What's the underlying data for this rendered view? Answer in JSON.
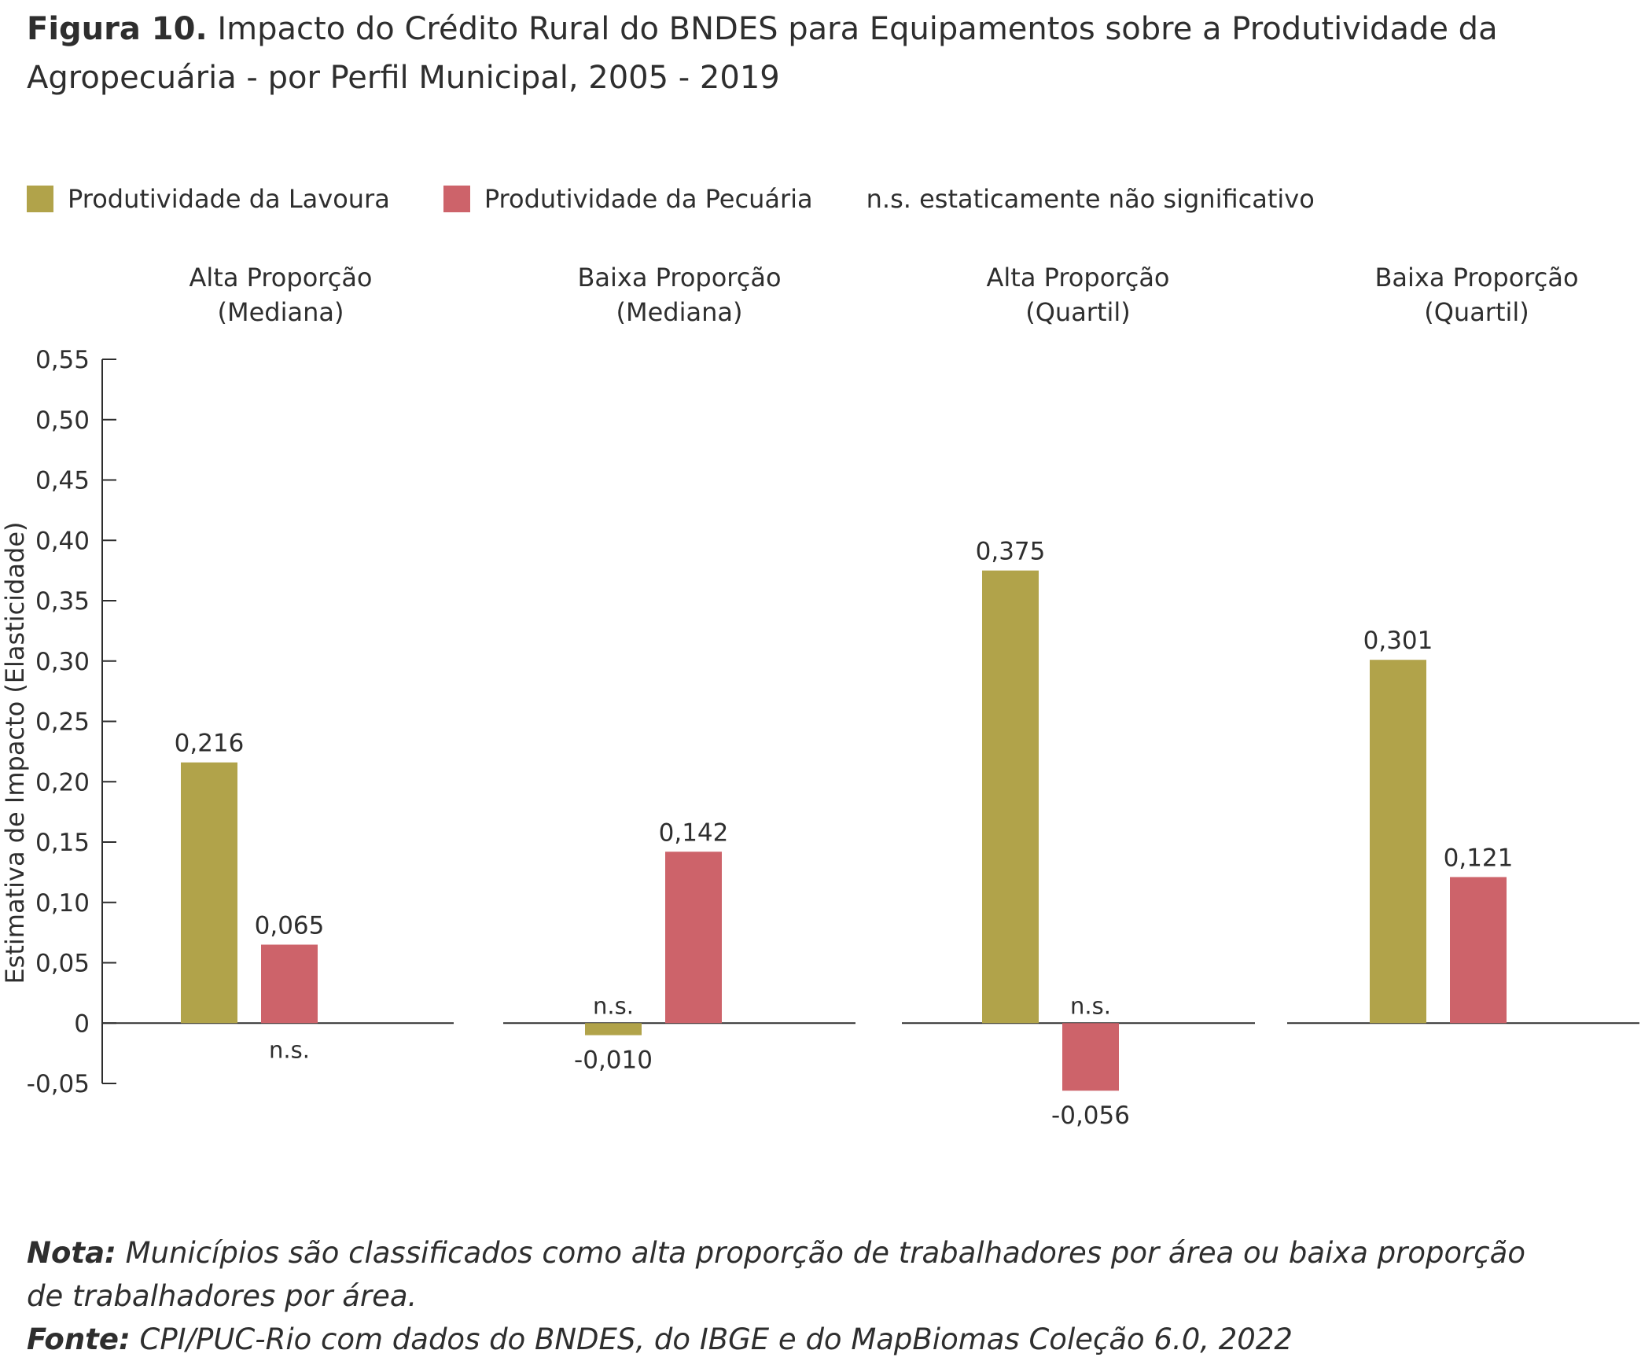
{
  "header": {
    "figure_label": "Figura 10.",
    "title": "Impacto do Crédito Rural do BNDES para Equipamentos sobre a Produtividade da Agropecuária - por Perfil Municipal, 2005 - 2019"
  },
  "legend": {
    "items": [
      {
        "label": "Produtividade da Lavoura",
        "color": "#b1a34a"
      },
      {
        "label": "Produtividade da Pecuária",
        "color": "#cd636a"
      }
    ],
    "note": "n.s. estaticamente não significativo"
  },
  "chart_data": {
    "type": "bar",
    "ylabel": "Estimativa de Impacto (Elasticidade)",
    "ylim": [
      -0.05,
      0.55
    ],
    "yticks": [
      {
        "value": -0.05,
        "label": "-0,05"
      },
      {
        "value": 0,
        "label": "0"
      },
      {
        "value": 0.05,
        "label": "0,05"
      },
      {
        "value": 0.1,
        "label": "0,10"
      },
      {
        "value": 0.15,
        "label": "0,15"
      },
      {
        "value": 0.2,
        "label": "0,20"
      },
      {
        "value": 0.25,
        "label": "0,25"
      },
      {
        "value": 0.3,
        "label": "0,30"
      },
      {
        "value": 0.35,
        "label": "0,35"
      },
      {
        "value": 0.4,
        "label": "0,40"
      },
      {
        "value": 0.45,
        "label": "0,45"
      },
      {
        "value": 0.5,
        "label": "0,50"
      },
      {
        "value": 0.55,
        "label": "0,55"
      }
    ],
    "grid": false,
    "legend_position": "top-left",
    "groups": [
      {
        "title_line1": "Alta Proporção",
        "title_line2": "(Mediana)",
        "bars": [
          {
            "series": "Produtividade da Lavoura",
            "value": 0.216,
            "label": "0,216",
            "significance": ""
          },
          {
            "series": "Produtividade da Pecuária",
            "value": 0.065,
            "label": "0,065",
            "significance": "n.s."
          }
        ]
      },
      {
        "title_line1": "Baixa Proporção",
        "title_line2": "(Mediana)",
        "bars": [
          {
            "series": "Produtividade da Lavoura",
            "value": -0.01,
            "label": "-0,010",
            "significance": "n.s."
          },
          {
            "series": "Produtividade da Pecuária",
            "value": 0.142,
            "label": "0,142",
            "significance": ""
          }
        ]
      },
      {
        "title_line1": "Alta Proporção",
        "title_line2": "(Quartil)",
        "bars": [
          {
            "series": "Produtividade da Lavoura",
            "value": 0.375,
            "label": "0,375",
            "significance": ""
          },
          {
            "series": "Produtividade da Pecuária",
            "value": -0.056,
            "label": "-0,056",
            "significance": "n.s."
          }
        ]
      },
      {
        "title_line1": "Baixa Proporção",
        "title_line2": "(Quartil)",
        "bars": [
          {
            "series": "Produtividade da Lavoura",
            "value": 0.301,
            "label": "0,301",
            "significance": ""
          },
          {
            "series": "Produtividade da Pecuária",
            "value": 0.121,
            "label": "0,121",
            "significance": ""
          }
        ]
      }
    ]
  },
  "footer": {
    "nota_label": "Nota:",
    "nota_text": "Municípios são classificados como alta proporção de trabalhadores por área ou baixa proporção de trabalhadores por área.",
    "fonte_label": "Fonte:",
    "fonte_text": "CPI/PUC-Rio com dados do BNDES, do IBGE e do MapBiomas Coleção 6.0, 2022"
  },
  "colors": {
    "lavoura": "#b1a34a",
    "pecuaria": "#cd636a",
    "axis": "#2e2e2e",
    "text": "#2e2e2e"
  }
}
